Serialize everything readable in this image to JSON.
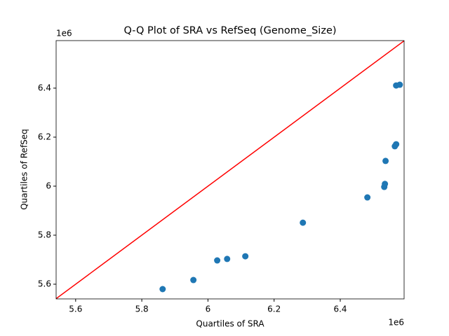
{
  "chart_data": {
    "type": "scatter",
    "title": "Q-Q Plot of SRA vs RefSeq (Genome_Size)",
    "x_label": "Quartiles of SRA",
    "y_label": "Quartiles of RefSeq",
    "x_offset_label": "1e6",
    "y_offset_label": "1e6",
    "series": [
      {
        "color": "#1f77b4",
        "x": [
          5.863,
          5.956,
          6.028,
          6.058,
          6.113,
          6.287,
          6.482,
          6.533,
          6.535,
          6.537,
          6.565,
          6.569,
          6.569,
          6.58
        ],
        "values": [
          5.58,
          5.617,
          5.697,
          5.703,
          5.714,
          5.851,
          5.954,
          5.997,
          6.009,
          6.103,
          6.163,
          6.171,
          6.411,
          6.414
        ]
      }
    ],
    "reference_line_color": "#ff0000",
    "xlim": [
      5.541,
      6.593
    ],
    "xticks": [
      5.6,
      5.8,
      6.0,
      6.2,
      6.4
    ],
    "ylim": [
      5.54,
      6.594
    ],
    "yticks": [
      5.6,
      5.8,
      6.0,
      6.2,
      6.4
    ]
  }
}
